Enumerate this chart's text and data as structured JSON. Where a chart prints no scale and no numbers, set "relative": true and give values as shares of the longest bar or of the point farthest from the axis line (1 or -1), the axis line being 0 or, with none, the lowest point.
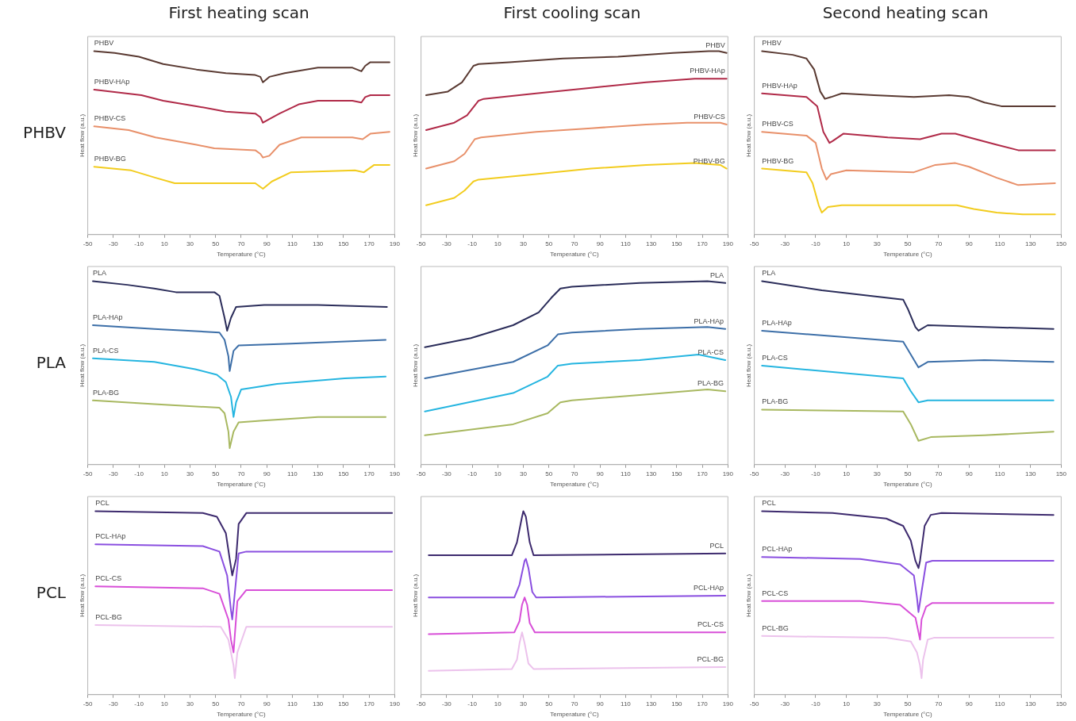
{
  "chart_data": [
    {
      "type": "line",
      "title": "First heating scan",
      "xlabel": "Temperature (°C)",
      "ylabel": "Heat flow (a.u.)",
      "relative": true,
      "tick_labels": "x",
      "marker": "none",
      "xlim": [
        -50,
        190
      ],
      "xticks": [
        -50,
        -30,
        -10,
        10,
        30,
        50,
        70,
        90,
        110,
        130,
        150,
        170,
        190
      ],
      "annotations": [
        "PHBV"
      ],
      "series": [
        {
          "name": "PHBV",
          "color": "#5a3a32",
          "x": [
            -45,
            -29,
            -10,
            9,
            35,
            58,
            81,
            85,
            87,
            92,
            104,
            130,
            145,
            157,
            164,
            167,
            171,
            186
          ],
          "values": [
            1.0,
            0.99,
            0.97,
            0.93,
            0.9,
            0.88,
            0.87,
            0.86,
            0.83,
            0.86,
            0.88,
            0.91,
            0.91,
            0.91,
            0.89,
            0.92,
            0.94,
            0.94
          ]
        },
        {
          "name": "PHBV-HAp",
          "color": "#b02a48",
          "x": [
            -45,
            -8,
            9,
            35,
            58,
            81,
            85,
            87,
            92,
            100,
            115,
            130,
            157,
            164,
            167,
            171,
            186
          ],
          "values": [
            0.79,
            0.76,
            0.73,
            0.7,
            0.67,
            0.66,
            0.64,
            0.61,
            0.63,
            0.66,
            0.71,
            0.73,
            0.73,
            0.72,
            0.75,
            0.76,
            0.76
          ]
        },
        {
          "name": "PHBV-CS",
          "color": "#e8906a",
          "x": [
            -45,
            -18,
            3,
            35,
            49,
            81,
            85,
            87,
            92,
            100,
            117,
            157,
            165,
            171,
            186
          ],
          "values": [
            0.59,
            0.57,
            0.53,
            0.49,
            0.47,
            0.46,
            0.44,
            0.42,
            0.43,
            0.49,
            0.53,
            0.53,
            0.52,
            0.55,
            0.56
          ]
        },
        {
          "name": "PHBV-BG",
          "color": "#f2cc1e",
          "x": [
            -45,
            -16,
            3,
            18,
            81,
            87,
            94,
            109,
            159,
            166,
            174,
            186
          ],
          "values": [
            0.37,
            0.35,
            0.31,
            0.28,
            0.28,
            0.25,
            0.29,
            0.34,
            0.35,
            0.34,
            0.38,
            0.38
          ]
        }
      ]
    },
    {
      "type": "line",
      "title": "First cooling scan",
      "xlabel": "Temperature (°C)",
      "ylabel": "Heat flow (a.u.)",
      "relative": true,
      "tick_labels": "x",
      "marker": "none",
      "xlim": [
        -50,
        190
      ],
      "xticks": [
        -50,
        -30,
        -10,
        10,
        30,
        50,
        70,
        90,
        110,
        130,
        150,
        170,
        190
      ],
      "series": [
        {
          "name": "PHBV",
          "color": "#5a3a32",
          "x": [
            -46,
            -29,
            -18,
            -9,
            -5,
            19,
            61,
            104,
            147,
            175,
            183,
            189
          ],
          "values": [
            0.76,
            0.78,
            0.83,
            0.92,
            0.93,
            0.94,
            0.96,
            0.97,
            0.99,
            1.0,
            1.0,
            0.99
          ]
        },
        {
          "name": "PHBV-HAp",
          "color": "#b02a48",
          "x": [
            -46,
            -24,
            -14,
            -5,
            -1,
            40,
            83,
            126,
            164,
            189
          ],
          "values": [
            0.57,
            0.61,
            0.65,
            0.73,
            0.74,
            0.77,
            0.8,
            0.83,
            0.85,
            0.85
          ]
        },
        {
          "name": "PHBV-CS",
          "color": "#e8906a",
          "x": [
            -46,
            -24,
            -16,
            -8,
            -3,
            40,
            83,
            126,
            158,
            184,
            189
          ],
          "values": [
            0.36,
            0.4,
            0.44,
            0.52,
            0.53,
            0.56,
            0.58,
            0.6,
            0.61,
            0.61,
            0.6
          ]
        },
        {
          "name": "PHBV-BG",
          "color": "#f2cc1e",
          "x": [
            -46,
            -24,
            -16,
            -9,
            -5,
            40,
            83,
            126,
            164,
            184,
            189
          ],
          "values": [
            0.16,
            0.2,
            0.24,
            0.29,
            0.3,
            0.33,
            0.36,
            0.38,
            0.39,
            0.38,
            0.36
          ]
        }
      ]
    },
    {
      "type": "line",
      "title": "Second heating scan",
      "xlabel": "Temperature (°C)",
      "ylabel": "Heat flow (a.u.)",
      "relative": true,
      "tick_labels": "x",
      "marker": "none",
      "xlim": [
        -50,
        150
      ],
      "xticks": [
        -50,
        -30,
        -10,
        10,
        30,
        50,
        70,
        90,
        110,
        130,
        150
      ],
      "series": [
        {
          "name": "PHBV",
          "color": "#5a3a32",
          "x": [
            -45,
            -25,
            -16,
            -11,
            -7,
            -4,
            0,
            7,
            28,
            54,
            77,
            90,
            100,
            111,
            129,
            146
          ],
          "values": [
            1.0,
            0.98,
            0.96,
            0.9,
            0.78,
            0.74,
            0.75,
            0.77,
            0.76,
            0.75,
            0.76,
            0.75,
            0.72,
            0.7,
            0.7,
            0.7
          ]
        },
        {
          "name": "PHBV-HAp",
          "color": "#b02a48",
          "x": [
            -45,
            -16,
            -9,
            -5,
            -1,
            1,
            8,
            37,
            58,
            72,
            81,
            90,
            108,
            122,
            146
          ],
          "values": [
            0.77,
            0.75,
            0.7,
            0.56,
            0.5,
            0.51,
            0.55,
            0.53,
            0.52,
            0.55,
            0.55,
            0.53,
            0.49,
            0.46,
            0.46
          ]
        },
        {
          "name": "PHBV-CS",
          "color": "#e8906a",
          "x": [
            -45,
            -16,
            -10,
            -6,
            -3,
            0,
            10,
            54,
            68,
            81,
            90,
            108,
            122,
            146
          ],
          "values": [
            0.56,
            0.54,
            0.5,
            0.36,
            0.3,
            0.33,
            0.35,
            0.34,
            0.38,
            0.39,
            0.37,
            0.31,
            0.27,
            0.28
          ]
        },
        {
          "name": "PHBV-BG",
          "color": "#f2cc1e",
          "x": [
            -45,
            -16,
            -12,
            -8,
            -6,
            -2,
            7,
            54,
            82,
            93,
            108,
            125,
            146
          ],
          "values": [
            0.36,
            0.34,
            0.28,
            0.16,
            0.12,
            0.15,
            0.16,
            0.16,
            0.16,
            0.14,
            0.12,
            0.11,
            0.11
          ]
        }
      ]
    },
    {
      "type": "line",
      "xlabel": "Temperature (°C)",
      "ylabel": "Heat flow (a.u.)",
      "relative": true,
      "tick_labels": "x",
      "marker": "none",
      "xlim": [
        -50,
        190
      ],
      "xticks": [
        -50,
        -30,
        -10,
        10,
        30,
        50,
        70,
        90,
        110,
        130,
        150,
        170,
        190
      ],
      "annotations": [
        "PLA"
      ],
      "series": [
        {
          "name": "PLA",
          "color": "#2b2d5a",
          "x": [
            -46,
            -19,
            2,
            19,
            49,
            53,
            57,
            59,
            62,
            66,
            88,
            130,
            184
          ],
          "values": [
            1.0,
            0.98,
            0.96,
            0.94,
            0.94,
            0.92,
            0.8,
            0.73,
            0.8,
            0.86,
            0.87,
            0.87,
            0.86
          ]
        },
        {
          "name": "PLA-HAp",
          "color": "#3d6fa8",
          "x": [
            -46,
            2,
            53,
            57,
            60,
            61,
            64,
            68,
            109,
            183
          ],
          "values": [
            0.76,
            0.74,
            0.72,
            0.68,
            0.59,
            0.51,
            0.62,
            0.65,
            0.66,
            0.68
          ]
        },
        {
          "name": "PLA-CS",
          "color": "#25b5e0",
          "x": [
            -46,
            2,
            34,
            51,
            58,
            62,
            64,
            66,
            70,
            98,
            151,
            183
          ],
          "values": [
            0.58,
            0.56,
            0.52,
            0.49,
            0.45,
            0.37,
            0.26,
            0.34,
            0.41,
            0.44,
            0.47,
            0.48
          ]
        },
        {
          "name": "PLA-BG",
          "color": "#a8b860",
          "x": [
            -46,
            2,
            53,
            57,
            60,
            61,
            64,
            68,
            87,
            130,
            183
          ],
          "values": [
            0.35,
            0.33,
            0.31,
            0.28,
            0.18,
            0.09,
            0.18,
            0.23,
            0.24,
            0.26,
            0.26
          ]
        }
      ]
    },
    {
      "type": "line",
      "xlabel": "Temperature (°C)",
      "ylabel": "Heat flow (a.u.)",
      "relative": true,
      "tick_labels": "x",
      "marker": "none",
      "xlim": [
        -50,
        190
      ],
      "xticks": [
        -50,
        -30,
        -10,
        10,
        30,
        50,
        70,
        90,
        110,
        130,
        150,
        170,
        190
      ],
      "series": [
        {
          "name": "PLA",
          "color": "#2b2d5a",
          "x": [
            -47,
            -11,
            22,
            42,
            52,
            59,
            68,
            121,
            174,
            188
          ],
          "values": [
            0.64,
            0.69,
            0.76,
            0.83,
            0.91,
            0.96,
            0.97,
            0.99,
            1.0,
            0.99
          ]
        },
        {
          "name": "PLA-HAp",
          "color": "#3d6fa8",
          "x": [
            -47,
            22,
            49,
            57,
            68,
            121,
            174,
            188
          ],
          "values": [
            0.47,
            0.56,
            0.65,
            0.71,
            0.72,
            0.74,
            0.75,
            0.74
          ]
        },
        {
          "name": "PLA-CS",
          "color": "#25b5e0",
          "x": [
            -47,
            22,
            49,
            57,
            68,
            121,
            167,
            188
          ],
          "values": [
            0.29,
            0.39,
            0.48,
            0.54,
            0.55,
            0.57,
            0.6,
            0.57
          ]
        },
        {
          "name": "PLA-BG",
          "color": "#a8b860",
          "x": [
            -47,
            22,
            49,
            59,
            68,
            121,
            174,
            188
          ],
          "values": [
            0.16,
            0.22,
            0.28,
            0.34,
            0.35,
            0.38,
            0.41,
            0.4
          ]
        }
      ]
    },
    {
      "type": "line",
      "xlabel": "Temperature (°C)",
      "ylabel": "Heat flow (a.u.)",
      "relative": true,
      "tick_labels": "x",
      "marker": "none",
      "xlim": [
        -50,
        150
      ],
      "xticks": [
        -50,
        -30,
        -10,
        10,
        30,
        50,
        70,
        90,
        110,
        130,
        150
      ],
      "series": [
        {
          "name": "PLA",
          "color": "#2b2d5a",
          "x": [
            -45,
            -6,
            47,
            50,
            55,
            57,
            63,
            100,
            145
          ],
          "values": [
            1.0,
            0.95,
            0.9,
            0.85,
            0.75,
            0.73,
            0.76,
            0.75,
            0.74
          ]
        },
        {
          "name": "PLA-HAp",
          "color": "#3d6fa8",
          "x": [
            -45,
            47,
            52,
            57,
            63,
            100,
            145
          ],
          "values": [
            0.73,
            0.67,
            0.6,
            0.53,
            0.56,
            0.57,
            0.56
          ]
        },
        {
          "name": "PLA-CS",
          "color": "#25b5e0",
          "x": [
            -45,
            47,
            52,
            57,
            63,
            100,
            145
          ],
          "values": [
            0.54,
            0.47,
            0.4,
            0.34,
            0.35,
            0.35,
            0.35
          ]
        },
        {
          "name": "PLA-BG",
          "color": "#a8b860",
          "x": [
            -45,
            47,
            52,
            57,
            65,
            100,
            145
          ],
          "values": [
            0.3,
            0.29,
            0.22,
            0.13,
            0.15,
            0.16,
            0.18
          ]
        }
      ]
    },
    {
      "type": "line",
      "xlabel": "Temperature (°C)",
      "ylabel": "Heat flow (a.u.)",
      "relative": true,
      "tick_labels": "x",
      "marker": "none",
      "xlim": [
        -50,
        190
      ],
      "xticks": [
        -50,
        -30,
        -10,
        10,
        30,
        50,
        70,
        90,
        110,
        130,
        150,
        170,
        190
      ],
      "annotations": [
        "PCL"
      ],
      "series": [
        {
          "name": "PCL",
          "color": "#3d2a6e",
          "x": [
            -44,
            40,
            51,
            58,
            61,
            63,
            66,
            68,
            74,
            188
          ],
          "values": [
            1.0,
            0.99,
            0.97,
            0.88,
            0.74,
            0.65,
            0.74,
            0.93,
            0.99,
            0.99
          ]
        },
        {
          "name": "PCL-HAp",
          "color": "#8a4fe0",
          "x": [
            -44,
            40,
            53,
            59,
            62,
            63,
            68,
            74,
            188
          ],
          "values": [
            0.82,
            0.81,
            0.78,
            0.65,
            0.46,
            0.41,
            0.77,
            0.78,
            0.78
          ]
        },
        {
          "name": "PCL-CS",
          "color": "#d84fd8",
          "x": [
            -44,
            40,
            53,
            60,
            62,
            64,
            67,
            74,
            188
          ],
          "values": [
            0.59,
            0.58,
            0.55,
            0.41,
            0.3,
            0.23,
            0.51,
            0.57,
            0.57
          ]
        },
        {
          "name": "PCL-BG",
          "color": "#ecc2ec",
          "x": [
            -44,
            54,
            60,
            64,
            65,
            67,
            74,
            188
          ],
          "values": [
            0.38,
            0.37,
            0.3,
            0.16,
            0.09,
            0.23,
            0.37,
            0.37
          ]
        }
      ]
    },
    {
      "type": "line",
      "xlabel": "Temperature (°C)",
      "ylabel": "Heat flow (a.u.)",
      "relative": true,
      "tick_labels": "x",
      "marker": "none",
      "xlim": [
        -50,
        190
      ],
      "xticks": [
        -50,
        -30,
        -10,
        10,
        30,
        50,
        70,
        90,
        110,
        130,
        150,
        170,
        190
      ],
      "series": [
        {
          "name": "PCL",
          "color": "#3d2a6e",
          "x": [
            -44,
            21,
            25,
            29,
            30,
            32,
            35,
            38,
            188
          ],
          "values": [
            0.76,
            0.76,
            0.83,
            0.97,
            1.0,
            0.97,
            0.83,
            0.76,
            0.77
          ]
        },
        {
          "name": "PCL-HAp",
          "color": "#8a4fe0",
          "x": [
            -44,
            23,
            27,
            31,
            32,
            34,
            37,
            40,
            188
          ],
          "values": [
            0.53,
            0.53,
            0.6,
            0.73,
            0.74,
            0.69,
            0.56,
            0.53,
            0.54
          ]
        },
        {
          "name": "PCL-CS",
          "color": "#d84fd8",
          "x": [
            -44,
            23,
            27,
            29,
            31,
            33,
            35,
            39,
            188
          ],
          "values": [
            0.33,
            0.34,
            0.4,
            0.49,
            0.53,
            0.49,
            0.39,
            0.34,
            0.34
          ]
        },
        {
          "name": "PCL-BG",
          "color": "#ecc2ec",
          "x": [
            -44,
            21,
            25,
            27,
            29,
            31,
            34,
            38,
            188
          ],
          "values": [
            0.13,
            0.14,
            0.19,
            0.28,
            0.34,
            0.28,
            0.17,
            0.14,
            0.15
          ]
        }
      ]
    },
    {
      "type": "line",
      "xlabel": "Temperature (°C)",
      "ylabel": "Heat flow (a.u.)",
      "relative": true,
      "tick_labels": "x",
      "marker": "none",
      "xlim": [
        -50,
        150
      ],
      "xticks": [
        -50,
        -30,
        -10,
        10,
        30,
        50,
        70,
        90,
        110,
        130,
        150
      ],
      "series": [
        {
          "name": "PCL",
          "color": "#3d2a6e",
          "x": [
            -45,
            1,
            36,
            47,
            52,
            55,
            57,
            58,
            61,
            65,
            72,
            145
          ],
          "values": [
            1.0,
            0.99,
            0.96,
            0.92,
            0.84,
            0.73,
            0.69,
            0.73,
            0.92,
            0.98,
            0.99,
            0.98
          ]
        },
        {
          "name": "PCL-HAp",
          "color": "#8a4fe0",
          "x": [
            -45,
            19,
            45,
            54,
            56,
            57,
            59,
            62,
            66,
            145
          ],
          "values": [
            0.75,
            0.74,
            0.71,
            0.65,
            0.53,
            0.45,
            0.56,
            0.72,
            0.73,
            0.73
          ]
        },
        {
          "name": "PCL-CS",
          "color": "#d84fd8",
          "x": [
            -45,
            19,
            45,
            55,
            57,
            58,
            59,
            62,
            66,
            145
          ],
          "values": [
            0.51,
            0.51,
            0.49,
            0.42,
            0.34,
            0.3,
            0.41,
            0.48,
            0.5,
            0.5
          ]
        },
        {
          "name": "PCL-BG",
          "color": "#ecc2ec",
          "x": [
            -45,
            36,
            52,
            56,
            58,
            59,
            60,
            63,
            67,
            145
          ],
          "values": [
            0.32,
            0.31,
            0.29,
            0.23,
            0.16,
            0.09,
            0.19,
            0.3,
            0.31,
            0.31
          ]
        }
      ]
    }
  ]
}
